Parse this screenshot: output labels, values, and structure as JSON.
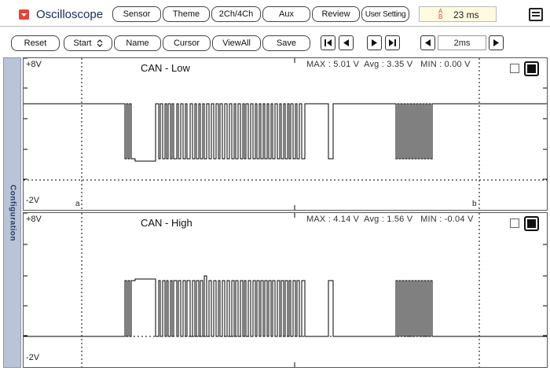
{
  "header": {
    "title": "Oscilloscope",
    "tabs": [
      "Sensor",
      "Theme",
      "2Ch/4Ch",
      "Aux",
      "Review",
      "User Setting"
    ],
    "time_display": "23 ms",
    "time_icon": "clock-icon"
  },
  "toolbar": {
    "reset": "Reset",
    "start": "Start",
    "name": "Name",
    "cursor": "Cursor",
    "viewall": "ViewAll",
    "save": "Save",
    "timebase": "2ms"
  },
  "sidebar": {
    "label": "Configuration"
  },
  "channels": [
    {
      "title": "CAN - Low",
      "y_top": "+8V",
      "y_bottom": "-2V",
      "max_label": "MAX",
      "max": "5.01 V",
      "avg_label": "Avg",
      "avg": "3.35 V",
      "min_label": "MIN",
      "min": "0.00 V",
      "cursor_a": "a",
      "cursor_b": "b"
    },
    {
      "title": "CAN - High",
      "y_top": "+8V",
      "y_bottom": "-2V",
      "max_label": "MAX",
      "max": "4.14 V",
      "avg_label": "Avg",
      "avg": "1.56 V",
      "min_label": "MIN",
      "min": "-0.04 V"
    }
  ],
  "colors": {
    "trace": "#000000",
    "sidebar": "#b9c4d6",
    "accent": "#e0463a",
    "time_bg": "#fffbe0"
  }
}
